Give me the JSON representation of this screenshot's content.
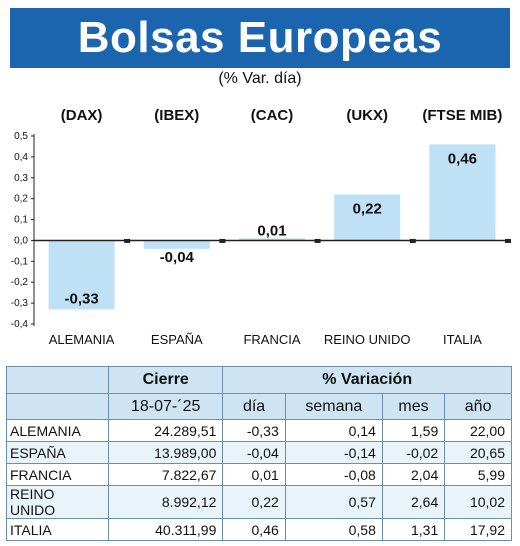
{
  "header": {
    "title": "Bolsas Europeas",
    "subtitle": "(% Var. día)"
  },
  "chart_data": {
    "type": "bar",
    "indices": [
      "(DAX)",
      "(IBEX)",
      "(CAC)",
      "(UKX)",
      "(FTSE MIB)"
    ],
    "categories": [
      "ALEMANIA",
      "ESPAÑA",
      "FRANCIA",
      "REINO UNIDO",
      "ITALIA"
    ],
    "values": [
      -0.33,
      -0.04,
      0.01,
      0.22,
      0.46
    ],
    "value_labels": [
      "-0,33",
      "-0,04",
      "0,01",
      "0,22",
      "0,46"
    ],
    "yticks": [
      "0,5",
      "0,4",
      "0,3",
      "0,2",
      "0,1",
      "0,0",
      "-0,1",
      "-0,2",
      "-0,3",
      "-0,4"
    ],
    "ytick_values": [
      0.5,
      0.4,
      0.3,
      0.2,
      0.1,
      0.0,
      -0.1,
      -0.2,
      -0.3,
      -0.4
    ],
    "ylim": [
      -0.4,
      0.5
    ],
    "bar_color": "#bfe0f5",
    "grid": false
  },
  "table": {
    "header1": {
      "cierre": "Cierre",
      "variacion": "% Variación"
    },
    "header2": {
      "fecha": "18-07-´25",
      "dia": "día",
      "semana": "semana",
      "mes": "mes",
      "anio": "año"
    },
    "rows": [
      {
        "name": "ALEMANIA",
        "cierre": "24.289,51",
        "dia": "-0,33",
        "semana": "0,14",
        "mes": "1,59",
        "anio": "22,00"
      },
      {
        "name": "ESPAÑA",
        "cierre": "13.989,00",
        "dia": "-0,04",
        "semana": "-0,14",
        "mes": "-0,02",
        "anio": "20,65"
      },
      {
        "name": "FRANCIA",
        "cierre": "7.822,67",
        "dia": "0,01",
        "semana": "-0,08",
        "mes": "2,04",
        "anio": "5,99"
      },
      {
        "name": "REINO UNIDO",
        "cierre": "8.992,12",
        "dia": "0,22",
        "semana": "0,57",
        "mes": "2,64",
        "anio": "10,02"
      },
      {
        "name": "ITALIA",
        "cierre": "40.311,99",
        "dia": "0,46",
        "semana": "0,58",
        "mes": "1,31",
        "anio": "17,92"
      }
    ]
  },
  "colors": {
    "banner": "#1b64ae",
    "header_fill": "#cfe4f2",
    "border": "#6a8fb0"
  }
}
